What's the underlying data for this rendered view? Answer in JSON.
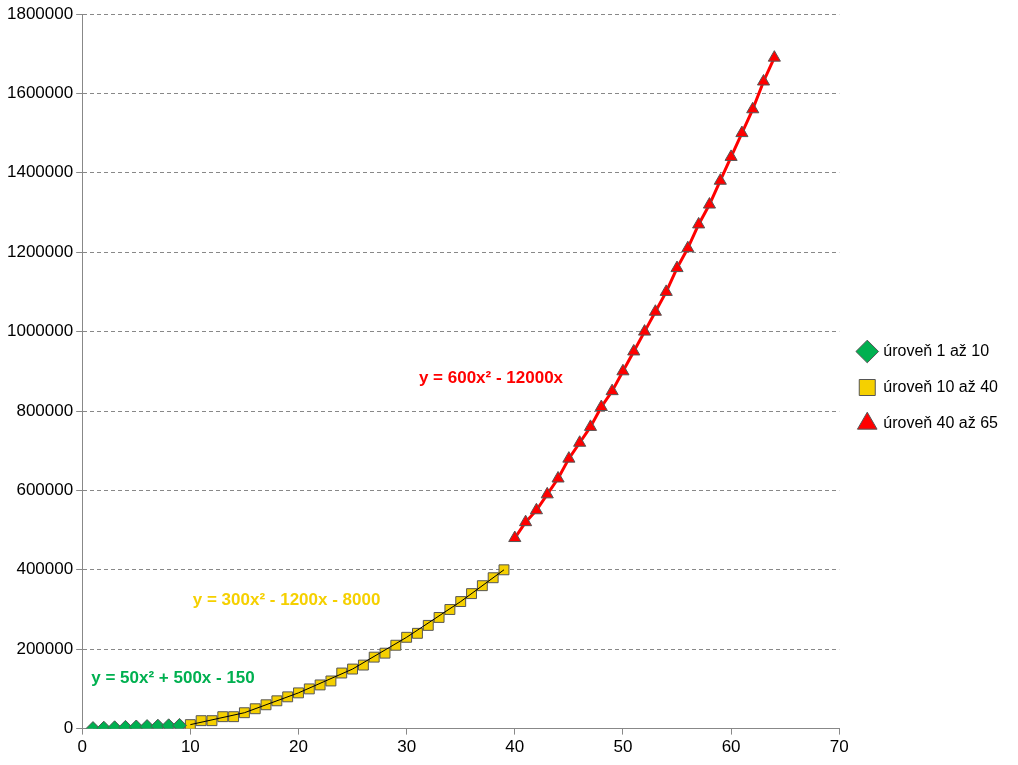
{
  "chart_data": {
    "type": "scatter",
    "xlim": [
      0,
      70
    ],
    "xticks": [
      0,
      10,
      20,
      30,
      40,
      50,
      60,
      70
    ],
    "ylim": [
      0,
      1800000
    ],
    "yticks": [
      0,
      200000,
      400000,
      600000,
      800000,
      1000000,
      1200000,
      1400000,
      1600000,
      1800000
    ],
    "grid": "y",
    "legend": "right",
    "line_style": "solid",
    "series": [
      {
        "name": "úroveň 1 až 10",
        "type": "line",
        "marker": "diamond",
        "color": "#00b050",
        "x": [
          1,
          2,
          3,
          4,
          5,
          6,
          7,
          8,
          9
        ],
        "values": [
          0,
          1000,
          2000,
          3000,
          4000,
          5000,
          6000,
          7000,
          8000
        ]
      },
      {
        "name": "úroveň 10 až 40",
        "type": "line",
        "marker": "square",
        "color": "#f5d000",
        "x": [
          10,
          11,
          12,
          13,
          14,
          15,
          16,
          17,
          18,
          19,
          20,
          21,
          22,
          23,
          24,
          25,
          26,
          27,
          28,
          29,
          30,
          31,
          32,
          33,
          34,
          35,
          36,
          37,
          38,
          39
        ],
        "values": [
          10000,
          20000,
          20000,
          30000,
          30000,
          40000,
          50000,
          60000,
          70000,
          80000,
          90000,
          100000,
          110000,
          120000,
          140000,
          150000,
          160000,
          180000,
          190000,
          210000,
          230000,
          240000,
          260000,
          280000,
          300000,
          320000,
          340000,
          360000,
          380000,
          400000
        ]
      },
      {
        "name": "úroveň 40 až 65",
        "type": "line",
        "marker": "triangle",
        "color": "#ff0000",
        "x": [
          40,
          41,
          42,
          43,
          44,
          45,
          46,
          47,
          48,
          49,
          50,
          51,
          52,
          53,
          54,
          55,
          56,
          57,
          58,
          59,
          60,
          61,
          62,
          63,
          64
        ],
        "values": [
          480000,
          520000,
          550000,
          590000,
          630000,
          680000,
          720000,
          760000,
          810000,
          850000,
          900000,
          950000,
          1000000,
          1050000,
          1100000,
          1160000,
          1210000,
          1270000,
          1320000,
          1380000,
          1440000,
          1500000,
          1560000,
          1630000,
          1690000
        ]
      },
      {
        "type": "line",
        "marker": "none",
        "color": "#000000",
        "x": [
          10,
          15,
          20,
          25,
          30,
          35,
          39
        ],
        "values": [
          10000,
          40000,
          90000,
          150000,
          230000,
          320000,
          400000
        ]
      }
    ],
    "annotations": [
      "y = 50x² + 500x - 150",
      "y = 300x² - 1200x - 8000",
      "y = 600x² - 12000x"
    ]
  }
}
